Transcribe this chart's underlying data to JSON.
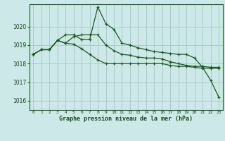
{
  "title": "Graphe pression niveau de la mer (hPa)",
  "background_color": "#cce8e8",
  "grid_color": "#aacccc",
  "line_color": "#1a5c1a",
  "x_ticks": [
    0,
    1,
    2,
    3,
    4,
    5,
    6,
    7,
    8,
    9,
    10,
    11,
    12,
    13,
    14,
    15,
    16,
    17,
    18,
    19,
    20,
    21,
    22,
    23
  ],
  "ylim": [
    1015.5,
    1021.2
  ],
  "yticks": [
    1016,
    1017,
    1018,
    1019,
    1020
  ],
  "series1": [
    1018.5,
    1018.75,
    1018.75,
    1019.25,
    1019.55,
    1019.55,
    1019.3,
    1019.3,
    1021.05,
    1020.15,
    1019.85,
    1019.1,
    1019.0,
    1018.85,
    1018.75,
    1018.65,
    1018.6,
    1018.55,
    1018.5,
    1018.5,
    1018.3,
    1017.8,
    1017.1,
    1016.2
  ],
  "series2": [
    1018.5,
    1018.75,
    1018.75,
    1019.25,
    1019.1,
    1019.45,
    1019.55,
    1019.55,
    1019.55,
    1019.0,
    1018.7,
    1018.5,
    1018.45,
    1018.35,
    1018.3,
    1018.3,
    1018.25,
    1018.1,
    1018.0,
    1017.9,
    1017.85,
    1017.85,
    1017.8,
    1017.8
  ],
  "series3": [
    1018.5,
    1018.75,
    1018.75,
    1019.25,
    1019.1,
    1019.05,
    1018.8,
    1018.5,
    1018.2,
    1018.0,
    1018.0,
    1018.0,
    1018.0,
    1018.0,
    1018.0,
    1018.0,
    1018.0,
    1017.9,
    1017.85,
    1017.85,
    1017.8,
    1017.75,
    1017.75,
    1017.75
  ]
}
